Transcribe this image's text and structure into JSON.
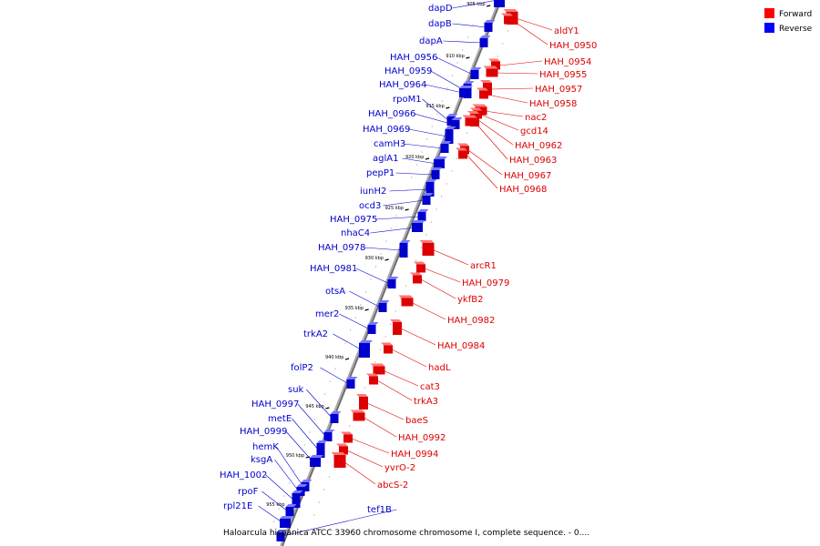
{
  "caption": "Haloarcula hispanica ATCC 33960 chromosome chromosome I, complete sequence. - 0....",
  "legend": [
    {
      "label": "Forward",
      "color": "#ff0000"
    },
    {
      "label": "Reverse",
      "color": "#0000ff"
    }
  ],
  "colors": {
    "forward": "#dd0000",
    "reverse": "#0000cc",
    "axis": "#888888"
  },
  "kbp_marks": [
    "905 kbp",
    "910 kbp",
    "915 kbp",
    "920 kbp",
    "925 kbp",
    "930 kbp",
    "935 kbp",
    "940 kbp",
    "945 kbp",
    "950 kbp",
    "955 kbp"
  ],
  "reverse_genes": [
    "dapD",
    "dapB",
    "dapA",
    "HAH_0956",
    "HAH_0959",
    "HAH_0964",
    "rpoM1",
    "HAH_0966",
    "HAH_0969",
    "camH3",
    "aglA1",
    "pepP1",
    "iunH2",
    "ocd3",
    "HAH_0975",
    "nhaC4",
    "HAH_0978",
    "HAH_0981",
    "otsA",
    "mer2",
    "trkA2",
    "folP2",
    "suk",
    "HAH_0997",
    "metE",
    "HAH_0999",
    "hemK",
    "ksgA",
    "HAH_1002",
    "rpoF",
    "rpl21E",
    "tef1B"
  ],
  "forward_genes": [
    "aldY1",
    "HAH_0950",
    "HAH_0954",
    "HAH_0955",
    "HAH_0957",
    "HAH_0958",
    "nac2",
    "gcd14",
    "HAH_0962",
    "HAH_0963",
    "HAH_0967",
    "HAH_0968",
    "arcR1",
    "HAH_0979",
    "ykfB2",
    "HAH_0982",
    "HAH_0984",
    "hadL",
    "cat3",
    "trkA3",
    "baeS",
    "HAH_0992",
    "HAH_0994",
    "yvrO-2",
    "abcS-2"
  ]
}
